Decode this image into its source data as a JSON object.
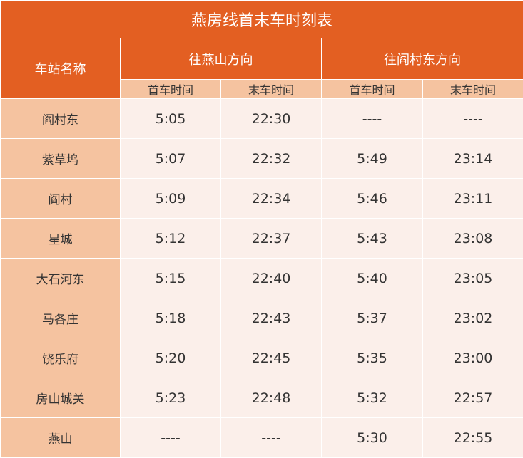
{
  "title": "燕房线首末车时刻表",
  "headers": {
    "station": "车站名称",
    "dir1": "往燕山方向",
    "dir2": "往阎村东方向",
    "first": "首车时间",
    "last": "末车时间"
  },
  "colors": {
    "header": "#E35F22",
    "subheader": "#F5C3A0",
    "cell": "#FBEFEA"
  },
  "rows": [
    {
      "station": "阎村东",
      "d1_first": "5:05",
      "d1_last": "22:30",
      "d2_first": "----",
      "d2_last": "----"
    },
    {
      "station": "紫草坞",
      "d1_first": "5:07",
      "d1_last": "22:32",
      "d2_first": "5:49",
      "d2_last": "23:14"
    },
    {
      "station": "阎村",
      "d1_first": "5:09",
      "d1_last": "22:34",
      "d2_first": "5:46",
      "d2_last": "23:11"
    },
    {
      "station": "星城",
      "d1_first": "5:12",
      "d1_last": "22:37",
      "d2_first": "5:43",
      "d2_last": "23:08"
    },
    {
      "station": "大石河东",
      "d1_first": "5:15",
      "d1_last": "22:40",
      "d2_first": "5:40",
      "d2_last": "23:05"
    },
    {
      "station": "马各庄",
      "d1_first": "5:18",
      "d1_last": "22:43",
      "d2_first": "5:37",
      "d2_last": "23:02"
    },
    {
      "station": "饶乐府",
      "d1_first": "5:20",
      "d1_last": "22:45",
      "d2_first": "5:35",
      "d2_last": "23:00"
    },
    {
      "station": "房山城关",
      "d1_first": "5:23",
      "d1_last": "22:48",
      "d2_first": "5:32",
      "d2_last": "22:57"
    },
    {
      "station": "燕山",
      "d1_first": "----",
      "d1_last": "----",
      "d2_first": "5:30",
      "d2_last": "22:55"
    }
  ]
}
